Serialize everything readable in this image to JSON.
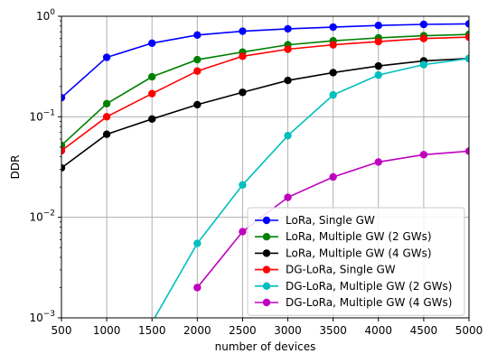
{
  "chart_data": {
    "type": "line",
    "xlabel": "number of devices",
    "ylabel": "DDR",
    "xlim": [
      500,
      5000
    ],
    "ylim": [
      0.001,
      1
    ],
    "yscale": "log",
    "grid": true,
    "legend_position": "lower-right",
    "x_ticks": [
      "500",
      "1000",
      "1500",
      "2000",
      "2500",
      "3000",
      "3500",
      "4000",
      "4500",
      "5000"
    ],
    "y_ticks": [
      {
        "value": 0.001,
        "base": "10",
        "exp": "−3"
      },
      {
        "value": 0.01,
        "base": "10",
        "exp": "−2"
      },
      {
        "value": 0.1,
        "base": "10",
        "exp": "−1"
      },
      {
        "value": 1,
        "base": "10",
        "exp": "0"
      }
    ],
    "x": [
      500,
      1000,
      1500,
      2000,
      2500,
      3000,
      3500,
      4000,
      4500,
      5000
    ],
    "series": [
      {
        "name": "LoRa, Single GW",
        "color": "#0000ff",
        "values": [
          0.155,
          0.39,
          0.54,
          0.65,
          0.71,
          0.75,
          0.78,
          0.81,
          0.83,
          0.84
        ]
      },
      {
        "name": "LoRa, Multiple GW (2 GWs)",
        "color": "#008000",
        "values": [
          0.052,
          0.135,
          0.25,
          0.37,
          0.44,
          0.52,
          0.57,
          0.61,
          0.64,
          0.66
        ]
      },
      {
        "name": "LoRa, Multiple GW (4 GWs)",
        "color": "#000000",
        "values": [
          0.031,
          0.067,
          0.095,
          0.132,
          0.175,
          0.23,
          0.275,
          0.32,
          0.36,
          0.38
        ]
      },
      {
        "name": "DG-LoRa, Single GW",
        "color": "#ff0000",
        "values": [
          0.046,
          0.1,
          0.17,
          0.285,
          0.4,
          0.47,
          0.52,
          0.56,
          0.6,
          0.62
        ]
      },
      {
        "name": "DG-LoRa, Multiple GW (2 GWs)",
        "color": "#00bfbf",
        "values": [
          null,
          null,
          0.0009,
          0.0055,
          0.021,
          0.065,
          0.165,
          0.26,
          0.33,
          0.38
        ]
      },
      {
        "name": "DG-LoRa, Multiple GW (4 GWs)",
        "color": "#bf00bf",
        "values": [
          null,
          null,
          null,
          0.002,
          0.0072,
          0.0158,
          0.0252,
          0.0355,
          0.042,
          0.0455
        ]
      }
    ]
  }
}
